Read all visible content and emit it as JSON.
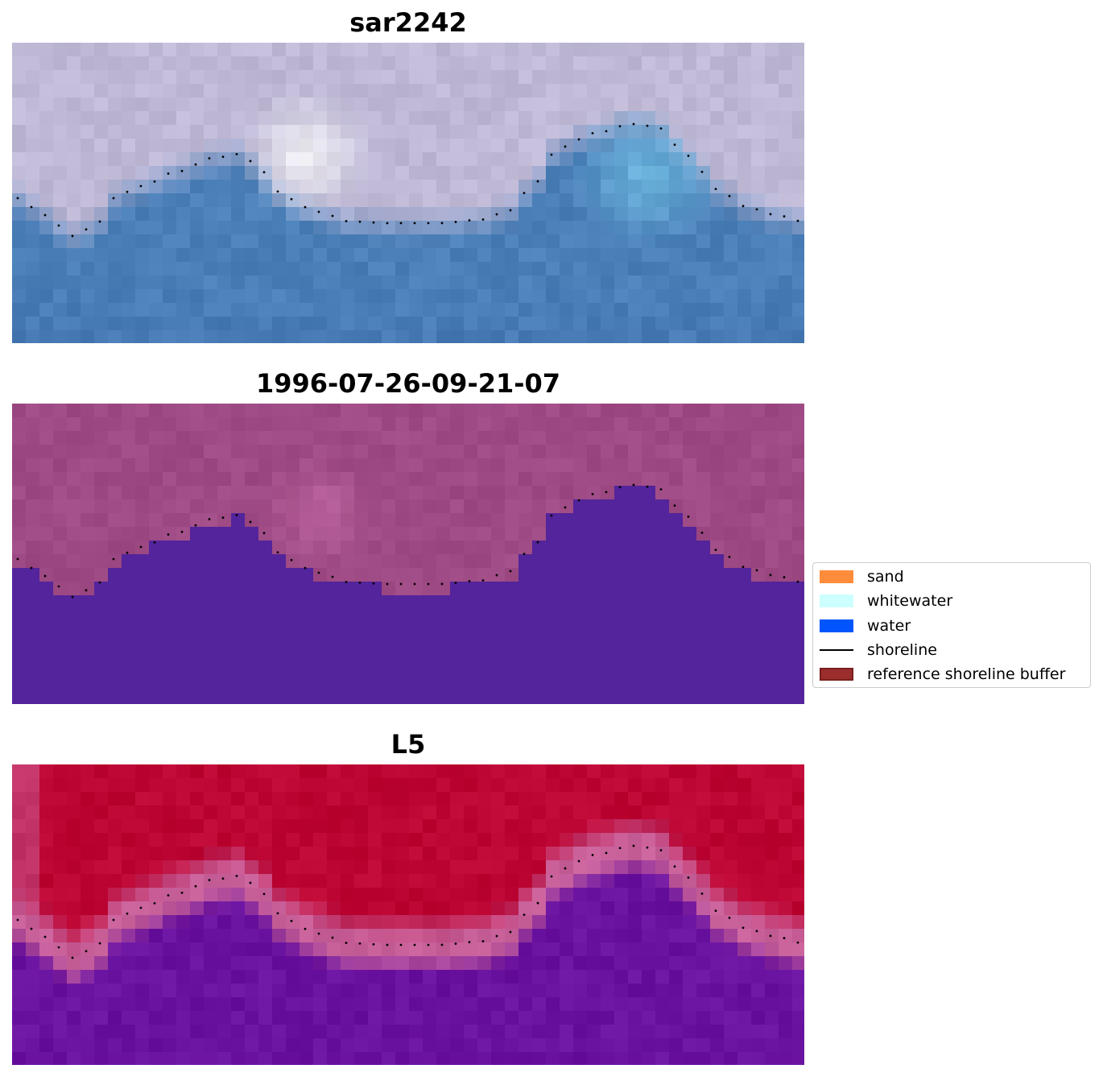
{
  "panels": [
    {
      "title": "sar2242",
      "style": "sar"
    },
    {
      "title": "1996-07-26-09-21-07",
      "style": "classified"
    },
    {
      "title": "L5",
      "style": "probability"
    }
  ],
  "legend": {
    "items": [
      {
        "label": "sand",
        "color": "#ff8c3a",
        "kind": "patch"
      },
      {
        "label": "whitewater",
        "color": "#ccfffd",
        "kind": "patch"
      },
      {
        "label": "water",
        "color": "#0055ff",
        "kind": "patch"
      },
      {
        "label": "shoreline",
        "color": "#000000",
        "kind": "line"
      },
      {
        "label": "reference shoreline buffer",
        "color": "#9b2d2d",
        "kind": "patch"
      }
    ]
  },
  "colors": {
    "sar_land": "#bfb9d6",
    "sar_water": "#4a7fb8",
    "class_land": "#9e4a84",
    "class_water": "#53249b",
    "prob_land": "#bc0533",
    "prob_water": "#6a12a0",
    "prob_edge": "#c8609a"
  }
}
